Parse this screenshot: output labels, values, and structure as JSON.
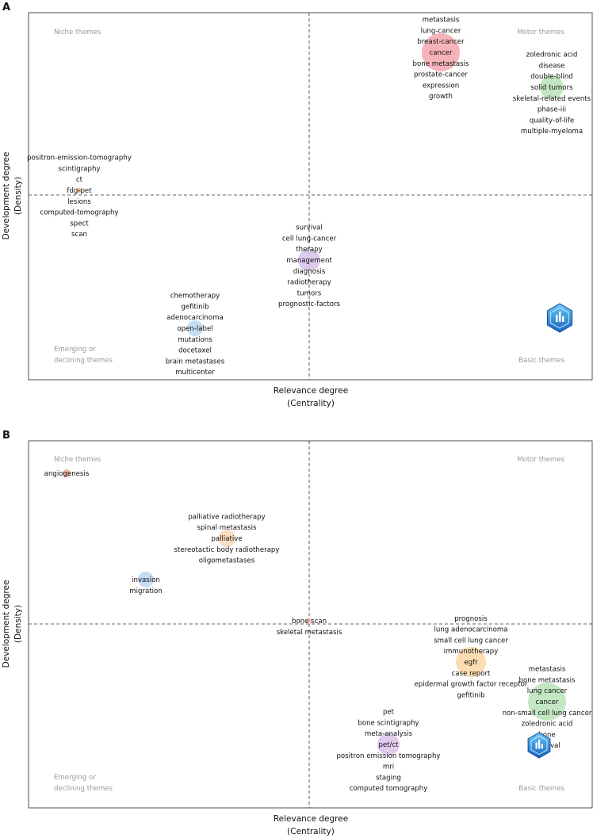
{
  "chart_data": [
    {
      "type": "scatter",
      "panel_label": "A",
      "xlabel": "Relevance degree",
      "xlabel_sub": "(Centrality)",
      "ylabel": "Development degree",
      "ylabel_sub": "(Density)",
      "quadrants": {
        "top_left": "Niche themes",
        "top_right": "Motor themes",
        "bottom_left": [
          "Emerging or",
          "declining themes"
        ],
        "bottom_right": "Basic themes"
      },
      "clusters": [
        {
          "name": "cancer",
          "x": 0.83,
          "y": 0.9,
          "size": 24,
          "color": "#f4a6ad",
          "terms": [
            "metastasis",
            "lung-cancer",
            "breast-cancer",
            "cancer",
            "bone metastasis",
            "prostate-cancer",
            "expression",
            "growth"
          ]
        },
        {
          "name": "solid tumors",
          "x": 1.53,
          "y": 0.68,
          "size": 15,
          "color": "#b8e3b8",
          "terms": [
            "zoledronic acid",
            "disease",
            "double-blind",
            "solid tumors",
            "skeletal-related events",
            "phase-iii",
            "quality-of-life",
            "multiple-myeloma"
          ]
        },
        {
          "name": "fdg-pet",
          "x": -1.45,
          "y": 0.03,
          "size": 3,
          "color": "#f3a86a",
          "terms": [
            "positron-emission-tomography",
            "scintigraphy",
            "ct",
            "fdg-pet",
            "lesions",
            "computed-tomography",
            "spect",
            "scan"
          ]
        },
        {
          "name": "management",
          "x": 0.0,
          "y": -0.41,
          "size": 14,
          "color": "#d7c2ea",
          "terms": [
            "survival",
            "cell lung-cancer",
            "therapy",
            "management",
            "diagnosis",
            "radiotherapy",
            "tumors",
            "prognostic-factors"
          ]
        },
        {
          "name": "open-label",
          "x": -0.72,
          "y": -0.84,
          "size": 10,
          "color": "#bcd6ef",
          "terms": [
            "chemotherapy",
            "gefitinib",
            "adenocarcinoma",
            "open-label",
            "mutations",
            "docetaxel",
            "brain metastases",
            "multicenter"
          ]
        }
      ]
    },
    {
      "type": "scatter",
      "panel_label": "B",
      "xlabel": "Relevance degree",
      "xlabel_sub": "(Centrality)",
      "ylabel": "Development degree",
      "ylabel_sub": "(Density)",
      "quadrants": {
        "top_left": "Niche themes",
        "top_right": "Motor themes",
        "bottom_left": [
          "Emerging or",
          "declining themes"
        ],
        "bottom_right": "Basic themes"
      },
      "clusters": [
        {
          "name": "angiogenesis",
          "x": -1.53,
          "y": 0.95,
          "size": 5,
          "color": "#f3a59a",
          "terms": [
            "angiogenesis"
          ]
        },
        {
          "name": "palliative",
          "x": -0.52,
          "y": 0.54,
          "size": 11,
          "color": "#f7d7b5",
          "terms": [
            "palliative radiotherapy",
            "spinal metastasis",
            "palliative",
            "stereotactic body radiotherapy",
            "oligometastases"
          ]
        },
        {
          "name": "invasion",
          "x": -1.03,
          "y": 0.28,
          "size": 10,
          "color": "#bcd6ef",
          "terms": [
            "invasion",
            "migration"
          ]
        },
        {
          "name": "bone scan",
          "x": 0.0,
          "y": 0.02,
          "size": 4,
          "color": "#f3c7b7",
          "terms": [
            "bone scan",
            "skeletal metastasis"
          ]
        },
        {
          "name": "egfr",
          "x": 1.02,
          "y": -0.24,
          "size": 19,
          "color": "#fbd7a5",
          "terms": [
            "prognosis",
            "lung adenocarcinoma",
            "small cell lung cancer",
            "immunotherapy",
            "egfr",
            "case report",
            "epidermal growth factor receptor",
            "gefitinib"
          ]
        },
        {
          "name": "cancer",
          "x": 1.5,
          "y": -0.49,
          "size": 24,
          "color": "#b8e3b8",
          "terms": [
            "metastasis",
            "bone metastasis",
            "lung cancer",
            "cancer",
            "non-small cell lung cancer",
            "zoledronic acid",
            "bone",
            "survival"
          ]
        },
        {
          "name": "pet/ct",
          "x": 0.5,
          "y": -0.76,
          "size": 14,
          "color": "#ddc3eb",
          "terms": [
            "pet",
            "bone scintigraphy",
            "meta-analysis",
            "pet/ct",
            "positron emission tomography",
            "mri",
            "staging",
            "computed tomography"
          ]
        }
      ]
    }
  ]
}
